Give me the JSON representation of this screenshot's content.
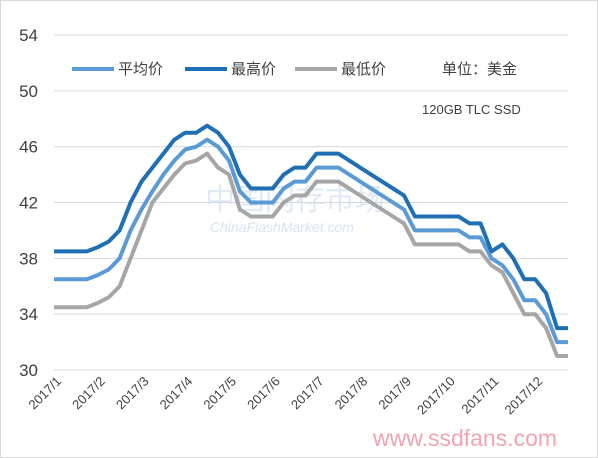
{
  "chart_data": {
    "type": "line",
    "title": "",
    "xlabel": "",
    "ylabel": "",
    "unit_note": "单位：美金",
    "subtitle": "120GB TLC SSD",
    "ylim": [
      30,
      54
    ],
    "y_ticks": [
      30,
      34,
      38,
      42,
      46,
      50,
      54
    ],
    "x_tick_labels": [
      "2017/1",
      "2017/2",
      "2017/3",
      "2017/4",
      "2017/5",
      "2017/6",
      "2017/7",
      "2017/8",
      "2017/9",
      "2017/10",
      "2017/11",
      "2017/12"
    ],
    "x": [
      0,
      0.25,
      0.5,
      0.75,
      1,
      1.25,
      1.5,
      1.75,
      2,
      2.25,
      2.5,
      2.75,
      3,
      3.25,
      3.5,
      3.75,
      4,
      4.25,
      4.5,
      4.75,
      5,
      5.25,
      5.5,
      5.75,
      6,
      6.25,
      6.5,
      6.75,
      7,
      7.25,
      7.5,
      7.75,
      8,
      8.25,
      8.5,
      8.75,
      9,
      9.25,
      9.5,
      9.75,
      10,
      10.25,
      10.5,
      10.75,
      11,
      11.25,
      11.5,
      11.75
    ],
    "grid": true,
    "legend_position": "top",
    "series": [
      {
        "name": "平均价",
        "color": "#5b9bd5",
        "values": [
          36.5,
          36.5,
          36.5,
          36.5,
          36.8,
          37.2,
          38.0,
          40.0,
          41.5,
          42.8,
          44.0,
          45.0,
          45.8,
          46.0,
          46.5,
          46.0,
          45.0,
          42.8,
          42.0,
          42.0,
          42.0,
          43.0,
          43.5,
          43.5,
          44.5,
          44.5,
          44.5,
          44.0,
          43.5,
          43.0,
          42.5,
          42.0,
          41.5,
          40.0,
          40.0,
          40.0,
          40.0,
          40.0,
          39.5,
          39.5,
          38.0,
          37.5,
          36.5,
          35.0,
          35.0,
          34.0,
          32.0,
          32.0
        ]
      },
      {
        "name": "最高价",
        "color": "#1f6fb4",
        "values": [
          38.5,
          38.5,
          38.5,
          38.5,
          38.8,
          39.2,
          40.0,
          42.0,
          43.5,
          44.5,
          45.5,
          46.5,
          47.0,
          47.0,
          47.5,
          47.0,
          46.0,
          44.0,
          43.0,
          43.0,
          43.0,
          44.0,
          44.5,
          44.5,
          45.5,
          45.5,
          45.5,
          45.0,
          44.5,
          44.0,
          43.5,
          43.0,
          42.5,
          41.0,
          41.0,
          41.0,
          41.0,
          41.0,
          40.5,
          40.5,
          38.5,
          39.0,
          38.0,
          36.5,
          36.5,
          35.5,
          33.0,
          33.0
        ]
      },
      {
        "name": "最低价",
        "color": "#a6a6a6",
        "values": [
          34.5,
          34.5,
          34.5,
          34.5,
          34.8,
          35.2,
          36.0,
          38.0,
          40.0,
          42.0,
          43.0,
          44.0,
          44.8,
          45.0,
          45.5,
          44.5,
          44.0,
          41.5,
          41.0,
          41.0,
          41.0,
          42.0,
          42.5,
          42.5,
          43.5,
          43.5,
          43.5,
          43.0,
          42.5,
          42.0,
          41.5,
          41.0,
          40.5,
          39.0,
          39.0,
          39.0,
          39.0,
          39.0,
          38.5,
          38.5,
          37.5,
          37.0,
          35.5,
          34.0,
          34.0,
          33.0,
          31.0,
          31.0
        ]
      }
    ]
  },
  "watermarks": {
    "cn": "中国闪存市场",
    "en": "ChinaFlashMarket.com",
    "site": "www.ssdfans.com"
  }
}
